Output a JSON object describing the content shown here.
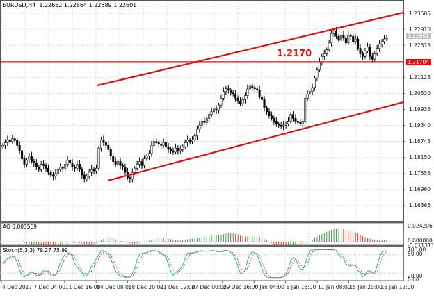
{
  "header": {
    "symbol_timeframe": "EURUSD,H4",
    "ohlc": "1.22662 1.22664 1.22589 1.22601"
  },
  "chart_data": {
    "type": "candlestick",
    "symbol": "EURUSD",
    "timeframe": "H4",
    "title": "EURUSD,H4 1.22662 1.22664 1.22589 1.22601",
    "ylim": [
      1.1595,
      1.239
    ],
    "grid": true,
    "price_axis_labels": [
      "1.23505",
      "1.22910",
      "1.22315",
      "1.21125",
      "1.20530",
      "1.19935",
      "1.19340",
      "1.18745",
      "1.18150",
      "1.17555",
      "1.16960",
      "1.16365"
    ],
    "current_price_tag": "1.22601",
    "horizontal_level": {
      "value": 1.21704,
      "label": "1.21704",
      "annotation": "1.2170",
      "color": "#e01010"
    },
    "trend_channel": {
      "color": "#e01010",
      "upper_line": [
        {
          "date": "14 Dec 2017",
          "price": 1.2085
        },
        {
          "date": "18 Jan 2018",
          "price": 1.235
        }
      ],
      "lower_line": [
        {
          "date": "14 Dec 2017",
          "price": 1.1725
        },
        {
          "date": "18 Jan 2018",
          "price": 1.2015
        }
      ]
    },
    "time_axis_labels": [
      "4 Dec 2017",
      "7 Dec 04:00",
      "11 Dec 16:00",
      "14 Dec 08:00",
      "18 Dec 20:00",
      "21 Dec 12:00",
      "27 Dec 00:00",
      "29 Dec 16:00",
      "4 Jan 04:00",
      "8 Jan 16:00",
      "11 Jan 08:00",
      "15 Jan 20:00",
      "18 Jan 12:00"
    ],
    "close_path": [
      1.186,
      1.187,
      1.188,
      1.1875,
      1.1885,
      1.1878,
      1.186,
      1.184,
      1.181,
      1.179,
      1.1805,
      1.182,
      1.18,
      1.1795,
      1.178,
      1.177,
      1.179,
      1.1785,
      1.1775,
      1.176,
      1.175,
      1.1745,
      1.1755,
      1.177,
      1.178,
      1.1775,
      1.179,
      1.1805,
      1.1795,
      1.178,
      1.1775,
      1.179,
      1.177,
      1.175,
      1.1735,
      1.1745,
      1.176,
      1.177,
      1.1765,
      1.1775,
      1.185,
      1.188,
      1.187,
      1.186,
      1.1845,
      1.182,
      1.18,
      1.179,
      1.18,
      1.1785,
      1.178,
      1.176,
      1.174,
      1.1735,
      1.176,
      1.1775,
      1.179,
      1.18,
      1.1785,
      1.181,
      1.182,
      1.183,
      1.186,
      1.1875,
      1.187,
      1.1865,
      1.186,
      1.187,
      1.1855,
      1.1845,
      1.184,
      1.1835,
      1.185,
      1.184,
      1.1845,
      1.1855,
      1.187,
      1.188,
      1.1875,
      1.188,
      1.1895,
      1.192,
      1.1935,
      1.195,
      1.1945,
      1.196,
      1.1975,
      1.1985,
      1.1995,
      1.199,
      1.201,
      1.2035,
      1.206,
      1.207,
      1.2065,
      1.2055,
      1.205,
      1.2035,
      1.2025,
      1.2015,
      1.203,
      1.2045,
      1.207,
      1.208,
      1.2075,
      1.207,
      1.2065,
      1.204,
      1.203,
      1.2,
      1.1985,
      1.197,
      1.196,
      1.195,
      1.194,
      1.1935,
      1.193,
      1.1935,
      1.194,
      1.195,
      1.1975,
      1.196,
      1.195,
      1.1945,
      1.194,
      1.195,
      1.2035,
      1.205,
      1.206,
      1.2075,
      1.211,
      1.214,
      1.217,
      1.219,
      1.22,
      1.2215,
      1.224,
      1.2275,
      1.2285,
      1.2265,
      1.225,
      1.227,
      1.226,
      1.224,
      1.227,
      1.2265,
      1.2245,
      1.2255,
      1.222,
      1.22,
      1.219,
      1.221,
      1.2225,
      1.219,
      1.218,
      1.22,
      1.222,
      1.2235,
      1.2245,
      1.2255,
      1.226
    ],
    "indicators": [
      {
        "name": "Awesome Oscillator",
        "label": "AO 0.003569",
        "value": 0.003569,
        "axis_labels": [
          "0.024206",
          "0.000000",
          "-0.011311"
        ],
        "colors": {
          "up": "#3a9a3a",
          "down": "#e03a3a"
        }
      },
      {
        "name": "Stochastic",
        "label": "Stoch(5,3,3) 79.27 75.99",
        "params": [
          5,
          3,
          3
        ],
        "main": 79.27,
        "signal": 75.99,
        "axis_labels": [
          "100.00",
          "80.00",
          "20.00",
          "0.00"
        ],
        "colors": {
          "main": "#20b2aa",
          "signal": "#e03a3a"
        }
      }
    ]
  }
}
